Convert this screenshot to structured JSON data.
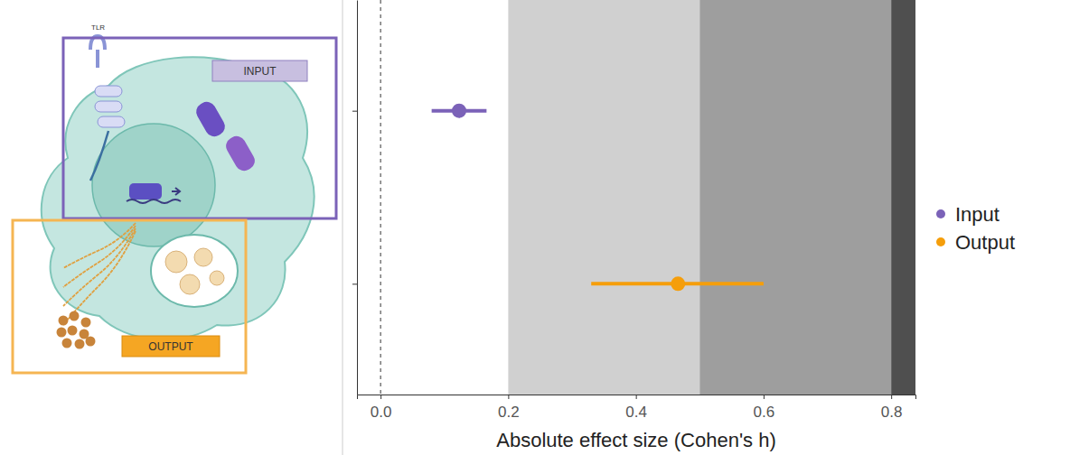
{
  "chart_data": {
    "type": "dot",
    "orientation": "horizontal",
    "xlabel": "Absolute effect size (Cohen's h)",
    "categories": [
      null,
      null
    ],
    "series": [
      {
        "name": "Input",
        "color": "#7b62b8",
        "values": [
          0.123,
          null
        ],
        "ci_low": [
          0.08,
          null
        ],
        "ci_high": [
          0.166,
          null
        ]
      },
      {
        "name": "Output",
        "color": "#f59e0b",
        "values": [
          null,
          0.466
        ],
        "ci_low": [
          null,
          0.33
        ],
        "ci_high": [
          null,
          0.6
        ]
      }
    ],
    "xlim": [
      -0.037,
      0.838
    ],
    "xticks": [
      {
        "value": 0,
        "label": "0.0"
      },
      0.2,
      0.4,
      0.6,
      0.8
    ],
    "bands": [
      {
        "from": 0.2,
        "to": 0.5,
        "color": "#d0d0d0"
      },
      {
        "from": 0.5,
        "to": 0.8,
        "color": "#9e9e9e"
      },
      {
        "from": 0.8,
        "to": 0.838,
        "color": "#4f4f4f"
      }
    ],
    "reference_line": 0,
    "tick_labels": "x",
    "legend": "right"
  },
  "illustration": {
    "receptor_label": "TLR",
    "input_label": "INPUT",
    "output_label": "OUTPUT"
  }
}
